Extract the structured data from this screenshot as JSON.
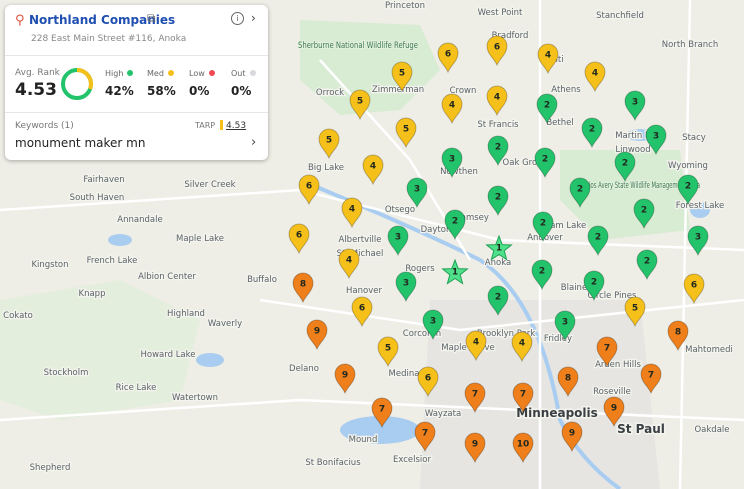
{
  "card": {
    "title": "Northland Companies",
    "address": "228 East Main Street #116, Anoka",
    "avg_rank_label": "Avg. Rank",
    "avg_rank": 4.53,
    "legend": [
      {
        "label": "High",
        "value": "42%",
        "color": "#22c36a"
      },
      {
        "label": "Med",
        "value": "58%",
        "color": "#f5c01a"
      },
      {
        "label": "Low",
        "value": "0%",
        "color": "#ef4a55"
      },
      {
        "label": "Out",
        "value": "0%",
        "color": "#d7d9dc"
      }
    ],
    "keywords_label": "Keywords (1)",
    "tarp_label": "TARP",
    "tarp_value": 4.53,
    "keyword": "monument maker mn"
  },
  "places": [
    "Princeton",
    "West Point",
    "Bradford",
    "Isanti",
    "Stanchfield",
    "North Branch",
    "Zimmerman",
    "Orrock",
    "Crown",
    "Athens",
    "St Francis",
    "Bethel",
    "Martin Lake",
    "Stacy",
    "Linwood",
    "Big Lake",
    "Oak Grove",
    "Nowthen",
    "Wyoming",
    "Fairhaven",
    "Silver Creek",
    "South Haven",
    "Otsego",
    "Forest Lake",
    "Annandale",
    "Albertville",
    "Dayton",
    "Ramsey",
    "Ham Lake",
    "Andover",
    "Maple Lake",
    "St. Michael",
    "Anoka",
    "French Lake",
    "Kingston",
    "Albion Center",
    "Buffalo",
    "Rogers",
    "Blaine",
    "Circle Pines",
    "Knapp",
    "Hanover",
    "Highland",
    "Corcoran",
    "Brooklyn Park",
    "Fridley",
    "Maple Grove",
    "Cokato",
    "Mahtomedi",
    "Howard Lake",
    "Arden Hills",
    "Stockholm",
    "Delano",
    "Medina",
    "Watertown",
    "Waverly",
    "Wayzata",
    "Roseville",
    "Mound",
    "Excelsior",
    "St Bonifacius",
    "Oakdale",
    "Rice Lake",
    "Shepherd"
  ],
  "parks": [
    "Sherburne National Wildlife Refuge",
    "Carlos Avery State Wildlife Management Area"
  ],
  "cities": [
    "Minneapolis",
    "St Paul"
  ],
  "pins": [
    6,
    6,
    4,
    5,
    4,
    5,
    4,
    4,
    2,
    3,
    5,
    5,
    2,
    3,
    2,
    3,
    2,
    2,
    4,
    6,
    3,
    2,
    2,
    2,
    4,
    2,
    2,
    2,
    6,
    3,
    2,
    3,
    1,
    4,
    2,
    1,
    2,
    3,
    2,
    8,
    6,
    2,
    6,
    5,
    3,
    3,
    9,
    8,
    4,
    4,
    5,
    7,
    9,
    6,
    7,
    8,
    7,
    7,
    7,
    9,
    7,
    9,
    9,
    10
  ]
}
